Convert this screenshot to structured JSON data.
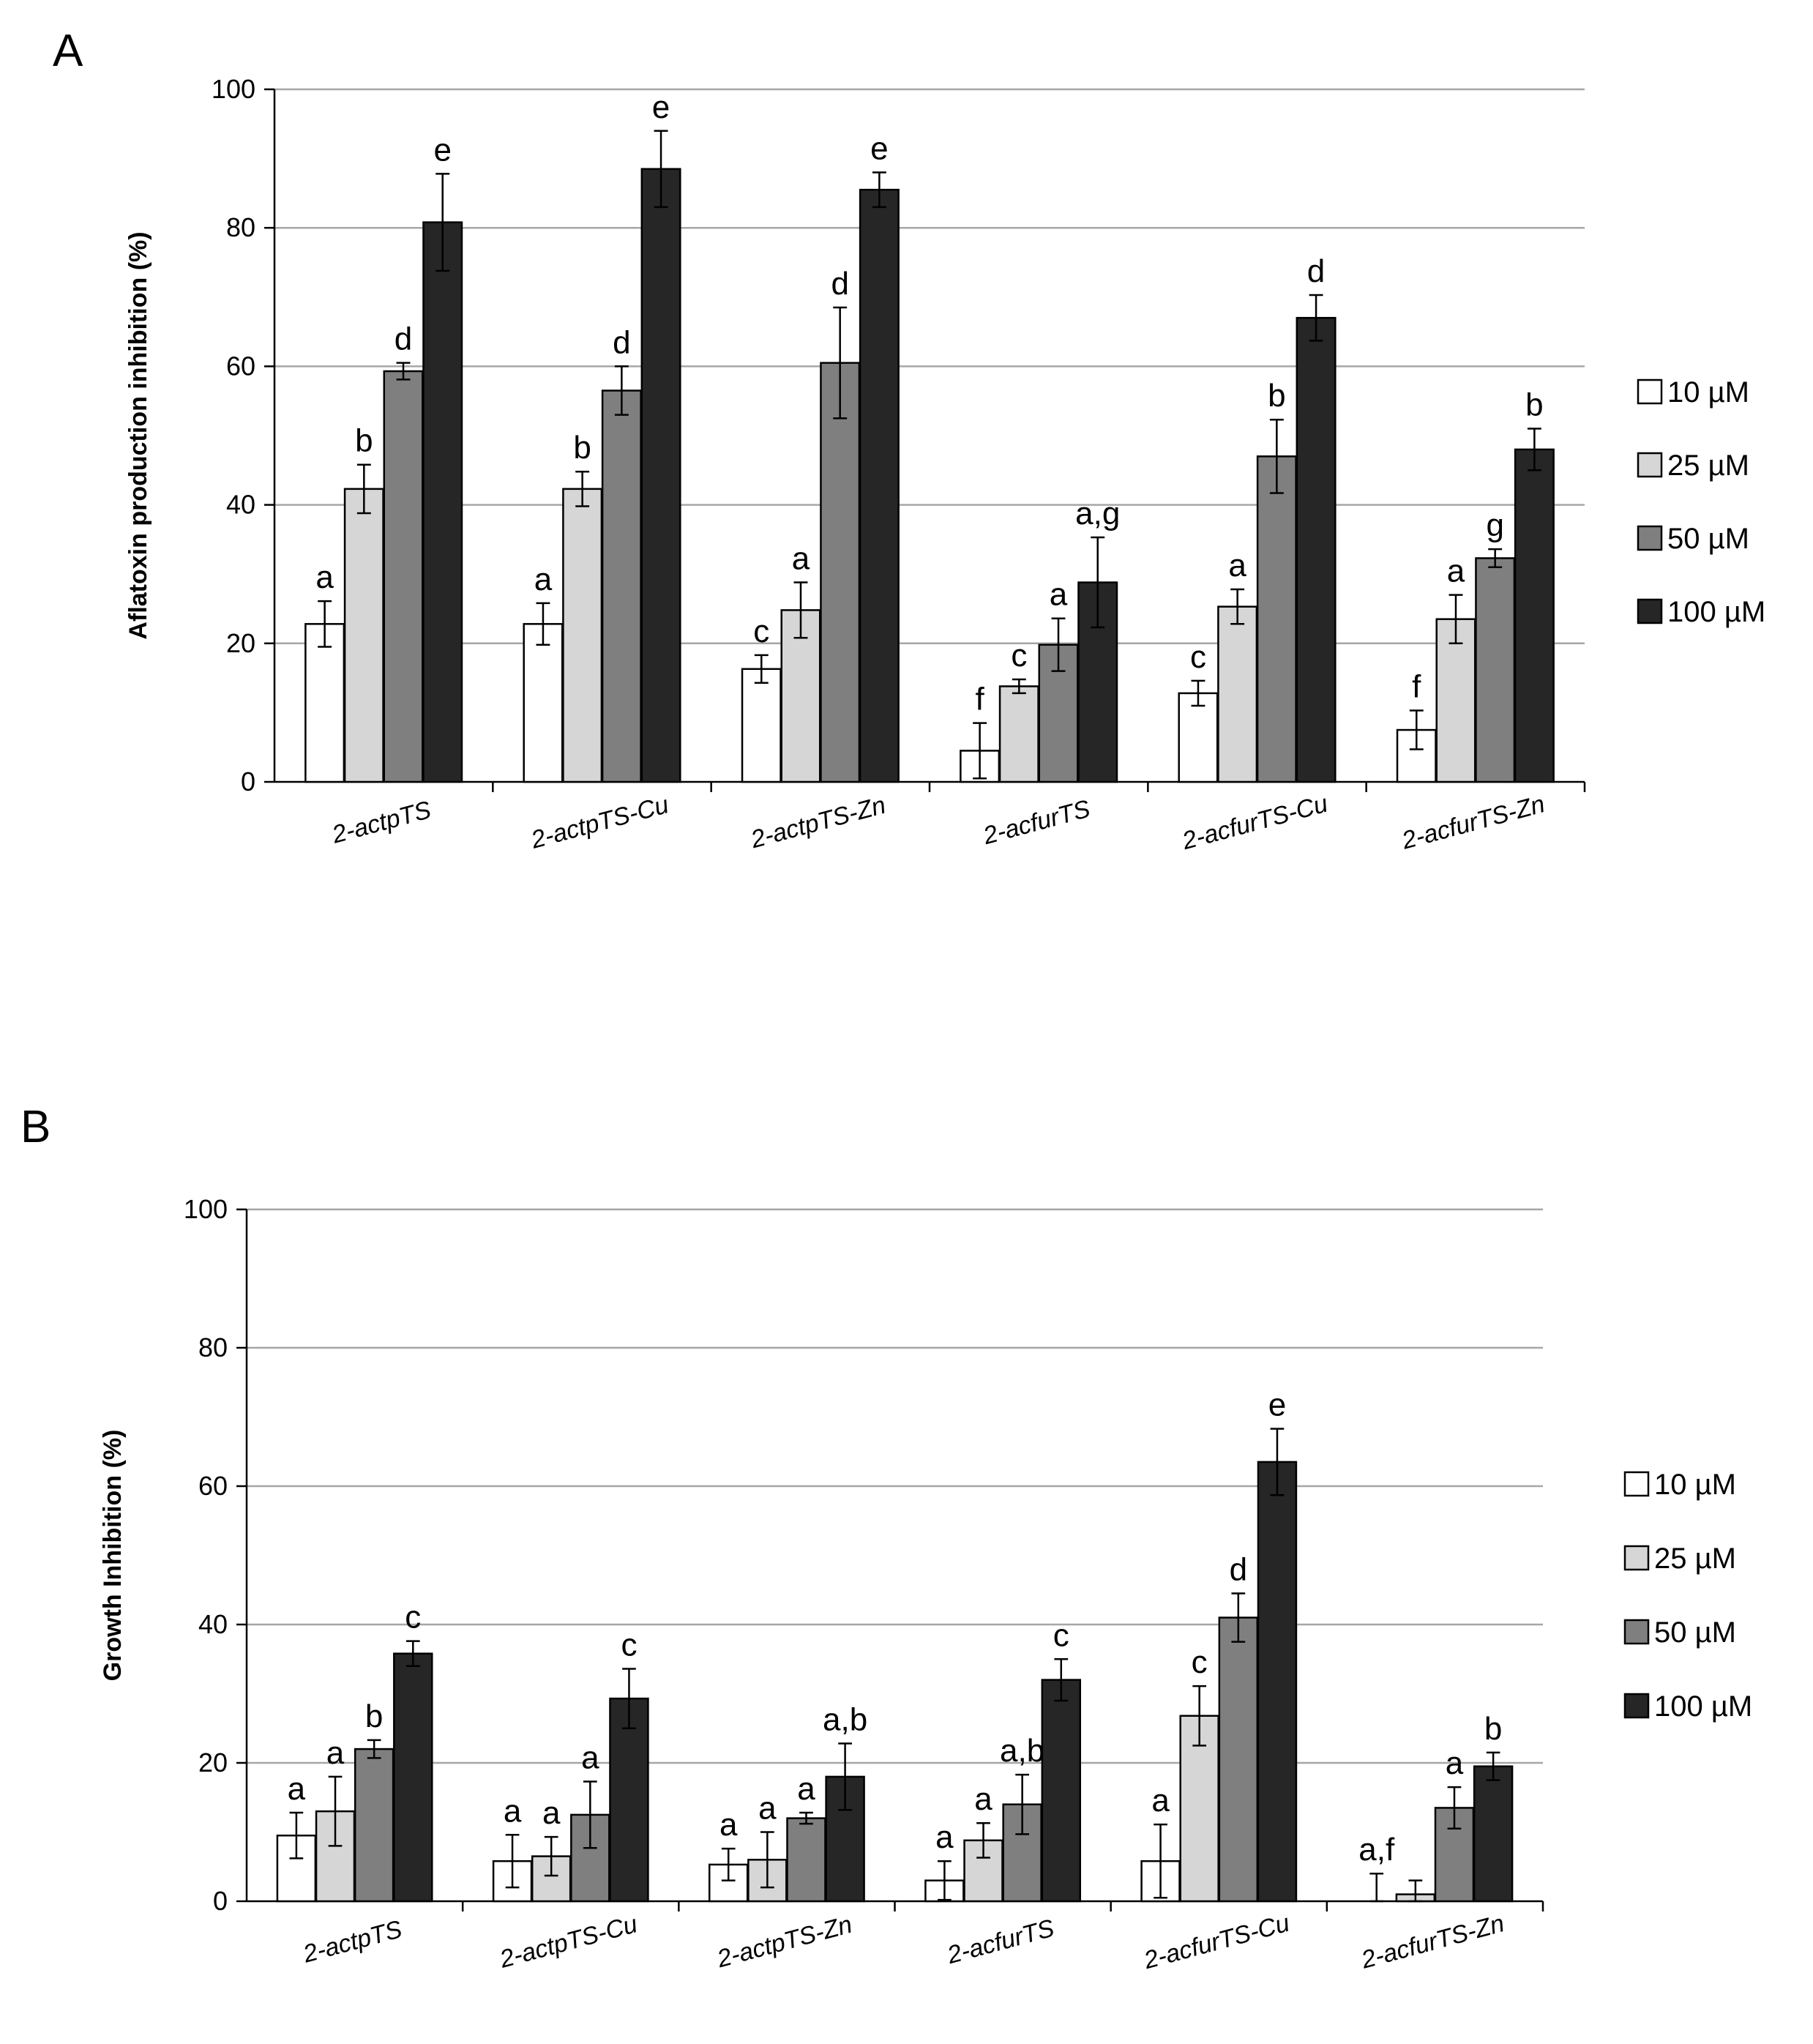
{
  "colors": {
    "10": "#ffffff",
    "25": "#d6d6d6",
    "50": "#7f7f7f",
    "100": "#262626",
    "grid": "#a6a6a6",
    "axis": "#000000"
  },
  "chart_data": [
    {
      "panel": "A",
      "type": "bar",
      "title": "",
      "xlabel": "",
      "ylabel": "Aflatoxin production inhibition (%)",
      "ylim": [
        0,
        100
      ],
      "yticks": [
        0,
        20,
        40,
        60,
        80,
        100
      ],
      "grid": true,
      "legend_position": "right",
      "categories": [
        "2-actpTS",
        "2-actpTS-Cu",
        "2-actpTS-Zn",
        "2-acfurTS",
        "2-acfurTS-Cu",
        "2-acfurTS-Zn"
      ],
      "series": [
        {
          "name": "10 µM",
          "color_key": "10",
          "values": [
            22.8,
            22.8,
            16.3,
            4.5,
            12.8,
            7.5
          ],
          "errors": [
            3.3,
            3.0,
            2.0,
            4.0,
            1.8,
            2.8
          ],
          "letters": [
            "a",
            "a",
            "c",
            "f",
            "c",
            "f"
          ]
        },
        {
          "name": "25 µM",
          "color_key": "25",
          "values": [
            42.3,
            42.3,
            24.8,
            13.8,
            25.3,
            23.5
          ],
          "errors": [
            3.5,
            2.5,
            4.0,
            1.0,
            2.5,
            3.5
          ],
          "letters": [
            "b",
            "b",
            "a",
            "c",
            "a",
            "a"
          ]
        },
        {
          "name": "50 µM",
          "color_key": "50",
          "values": [
            59.3,
            56.5,
            60.5,
            19.8,
            47.0,
            32.3
          ],
          "errors": [
            1.2,
            3.5,
            8.0,
            3.8,
            5.3,
            1.3
          ],
          "letters": [
            "d",
            "d",
            "d",
            "a",
            "b",
            "g"
          ]
        },
        {
          "name": "100 µM",
          "color_key": "100",
          "values": [
            80.8,
            88.5,
            85.5,
            28.8,
            67.0,
            48.0
          ],
          "errors": [
            7.0,
            5.5,
            2.5,
            6.5,
            3.3,
            3.0
          ],
          "letters": [
            "e",
            "e",
            "e",
            "a,g",
            "d",
            "b"
          ]
        }
      ]
    },
    {
      "panel": "B",
      "type": "bar",
      "title": "",
      "xlabel": "",
      "ylabel": "Growth Inhibition (%)",
      "ylim": [
        0,
        100
      ],
      "yticks": [
        0,
        20,
        40,
        60,
        80,
        100
      ],
      "grid": true,
      "legend_position": "right",
      "categories": [
        "2-actpTS",
        "2-actpTS-Cu",
        "2-actpTS-Zn",
        "2-acfurTS",
        "2-acfurTS-Cu",
        "2-acfurTS-Zn"
      ],
      "series": [
        {
          "name": "10 µM",
          "color_key": "10",
          "values": [
            9.5,
            5.8,
            5.3,
            3.0,
            5.8,
            0.0
          ],
          "errors": [
            3.3,
            3.8,
            2.3,
            2.8,
            5.3,
            4.0
          ],
          "letters": [
            "a",
            "a",
            "a",
            "a",
            "a",
            "a,f"
          ]
        },
        {
          "name": "25 µM",
          "color_key": "25",
          "values": [
            13.0,
            6.5,
            6.0,
            8.8,
            26.8,
            1.0
          ],
          "errors": [
            5.0,
            2.8,
            4.0,
            2.5,
            4.3,
            2.0
          ],
          "letters": [
            "a",
            "a",
            "a",
            "a",
            "c",
            ""
          ]
        },
        {
          "name": "50 µM",
          "color_key": "50",
          "values": [
            22.0,
            12.5,
            12.0,
            14.0,
            41.0,
            13.5
          ],
          "errors": [
            1.3,
            4.8,
            0.8,
            4.3,
            3.5,
            3.0
          ],
          "letters": [
            "b",
            "a",
            "a",
            "a,b",
            "d",
            "a"
          ]
        },
        {
          "name": "100 µM",
          "color_key": "100",
          "values": [
            35.8,
            29.3,
            18.0,
            32.0,
            63.5,
            19.5
          ],
          "errors": [
            1.8,
            4.3,
            4.8,
            3.0,
            4.8,
            2.0
          ],
          "letters": [
            "c",
            "c",
            "a,b",
            "c",
            "e",
            "b"
          ]
        }
      ]
    }
  ]
}
